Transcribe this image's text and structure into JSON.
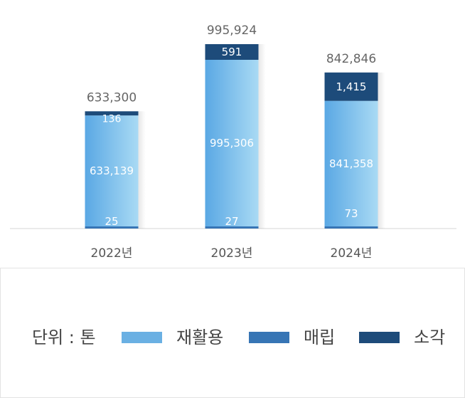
{
  "chart_data": {
    "type": "bar",
    "stacked": true,
    "categories": [
      "2022년",
      "2023년",
      "2024년"
    ],
    "totals": [
      "633,300",
      "995,924",
      "842,846"
    ],
    "series": [
      {
        "name": "매립",
        "key": "landfill",
        "values": [
          25,
          27,
          73
        ],
        "labels": [
          "25",
          "27",
          "73"
        ],
        "color": "#3775b5"
      },
      {
        "name": "재활용",
        "key": "recycle",
        "values": [
          633139,
          995306,
          841358
        ],
        "labels": [
          "633,139",
          "995,306",
          "841,358"
        ],
        "color": "#6ab0e3"
      },
      {
        "name": "소각",
        "key": "incinerate",
        "values": [
          136,
          591,
          1415
        ],
        "labels": [
          "136",
          "591",
          "1,415"
        ],
        "color": "#1d4b7a"
      }
    ],
    "ylim": [
      0,
      1000000
    ],
    "grid": false,
    "legend_position": "bottom"
  },
  "legend": {
    "unit": "단위 : 톤",
    "items": [
      {
        "label": "재활용",
        "color": "#6ab0e3"
      },
      {
        "label": "매립",
        "color": "#3775b5"
      },
      {
        "label": "소각",
        "color": "#1d4b7a"
      }
    ]
  }
}
